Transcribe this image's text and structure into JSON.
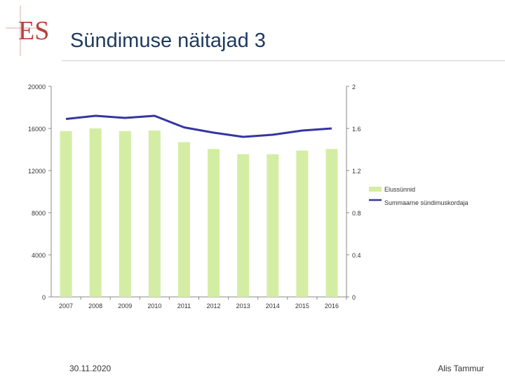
{
  "header": {
    "title": "Sündimuse näitajad 3"
  },
  "logo": {
    "text": "ES",
    "color": "#b5433a"
  },
  "footer": {
    "date": "30.11.2020",
    "author": "Alis Tammur"
  },
  "chart_data": {
    "type": "bar",
    "categories": [
      "2007",
      "2008",
      "2009",
      "2010",
      "2011",
      "2012",
      "2013",
      "2014",
      "2015",
      "2016"
    ],
    "series": [
      {
        "name": "Elussünnid",
        "type": "bar",
        "axis": "left",
        "color": "#d4eda4",
        "values": [
          15750,
          16000,
          15750,
          15800,
          14700,
          14050,
          13550,
          13550,
          13900,
          14050
        ]
      },
      {
        "name": "Summaarne sündimuskordaja",
        "type": "line",
        "axis": "right",
        "color": "#3535a0",
        "values": [
          1.69,
          1.72,
          1.7,
          1.72,
          1.61,
          1.56,
          1.52,
          1.54,
          1.58,
          1.6
        ]
      }
    ],
    "y_left": {
      "ticks": [
        "0",
        "4000",
        "8000",
        "12000",
        "16000",
        "20000"
      ],
      "min": 0,
      "max": 20000
    },
    "y_right": {
      "ticks": [
        "0",
        "0.4",
        "0.8",
        "1.2",
        "1.6",
        "2"
      ],
      "min": 0,
      "max": 2
    },
    "legend": {
      "position": "right",
      "items": [
        "Elussünnid",
        "Summaarne sündimuskordaja"
      ]
    }
  }
}
